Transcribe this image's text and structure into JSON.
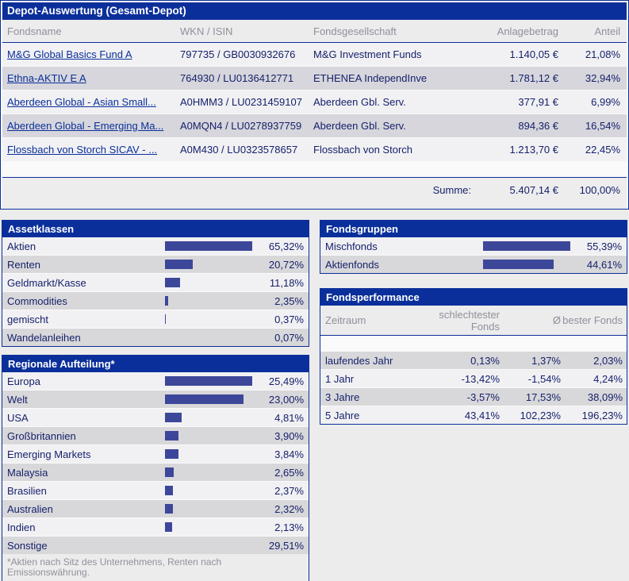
{
  "colors": {
    "navy": "#0b2f9a",
    "bar_fill": "#3d4799",
    "row_light": "#f1f1f3",
    "row_dark": "#d6d6dc",
    "muted_text": "#8f909c",
    "text_navy": "#17216b"
  },
  "title": "Depot-Auswertung (Gesamt-Depot)",
  "table": {
    "columns": [
      "Fondsname",
      "WKN / ISIN",
      "Fondsgesellschaft",
      "Anlagebetrag",
      "Anteil"
    ],
    "rows": [
      {
        "name": "M&G Global Basics Fund A",
        "wkn_isin": "797735 / GB0030932676",
        "company": "M&G Investment Funds",
        "amount": "1.140,05 €",
        "share": "21,08%"
      },
      {
        "name": "Ethna-AKTIV E A",
        "wkn_isin": "764930 / LU0136412771",
        "company": "ETHENEA IndependInve",
        "amount": "1.781,12 €",
        "share": "32,94%"
      },
      {
        "name": "Aberdeen Global - Asian Small...",
        "wkn_isin": "A0HMM3 / LU0231459107",
        "company": "Aberdeen Gbl. Serv.",
        "amount": "377,91 €",
        "share": "6,99%"
      },
      {
        "name": "Aberdeen Global - Emerging Ma...",
        "wkn_isin": "A0MQN4 / LU0278937759",
        "company": "Aberdeen Gbl. Serv.",
        "amount": "894,36 €",
        "share": "16,54%"
      },
      {
        "name": "Flossbach von Storch SICAV - ...",
        "wkn_isin": "A0M430 / LU0323578657",
        "company": "Flossbach von Storch",
        "amount": "1.213,70 €",
        "share": "22,45%"
      }
    ],
    "sum_label": "Summe:",
    "sum_amount": "5.407,14 €",
    "sum_share": "100,00%"
  },
  "panels": {
    "assetklassen": {
      "title": "Assetklassen",
      "rows": [
        {
          "label": "Aktien",
          "value": 65.32,
          "text": "65,32%"
        },
        {
          "label": "Renten",
          "value": 20.72,
          "text": "20,72%"
        },
        {
          "label": "Geldmarkt/Kasse",
          "value": 11.18,
          "text": "11,18%"
        },
        {
          "label": "Commodities",
          "value": 2.35,
          "text": "2,35%"
        },
        {
          "label": "gemischt",
          "value": 0.37,
          "text": "0,37%"
        },
        {
          "label": "Wandelanleihen",
          "value": 0.07,
          "text": "0,07%"
        }
      ]
    },
    "fondsgruppen": {
      "title": "Fondsgruppen",
      "rows": [
        {
          "label": "Mischfonds",
          "value": 55.39,
          "text": "55,39%"
        },
        {
          "label": "Aktienfonds",
          "value": 44.61,
          "text": "44,61%"
        }
      ]
    },
    "regionale": {
      "title": "Regionale Aufteilung*",
      "rows": [
        {
          "label": "Europa",
          "value": 25.49,
          "text": "25,49%"
        },
        {
          "label": "Welt",
          "value": 23.0,
          "text": "23,00%"
        },
        {
          "label": "USA",
          "value": 4.81,
          "text": "4,81%"
        },
        {
          "label": "Großbritannien",
          "value": 3.9,
          "text": "3,90%"
        },
        {
          "label": "Emerging Markets",
          "value": 3.84,
          "text": "3,84%"
        },
        {
          "label": "Malaysia",
          "value": 2.65,
          "text": "2,65%"
        },
        {
          "label": "Brasilien",
          "value": 2.37,
          "text": "2,37%"
        },
        {
          "label": "Australien",
          "value": 2.32,
          "text": "2,32%"
        },
        {
          "label": "Indien",
          "value": 2.13,
          "text": "2,13%"
        },
        {
          "label": "Sonstige",
          "value": 29.51,
          "text": "29,51%",
          "show_bar": false
        }
      ],
      "footnote": "*Aktien nach Sitz des Unternehmens, Renten nach Emissionswährung."
    },
    "performance": {
      "title": "Fondsperformance",
      "headers": {
        "zeitraum": "Zeitraum",
        "worst": "schlechtester Fonds",
        "avg": "Ø",
        "best": "bester Fonds"
      },
      "rows": [
        {
          "label": "laufendes Jahr",
          "worst": "0,13%",
          "avg": "1,37%",
          "best": "2,03%"
        },
        {
          "label": "1 Jahr",
          "worst": "-13,42%",
          "avg": "-1,54%",
          "best": "4,24%"
        },
        {
          "label": "3 Jahre",
          "worst": "-3,57%",
          "avg": "17,53%",
          "best": "38,09%"
        },
        {
          "label": "5 Jahre",
          "worst": "43,41%",
          "avg": "102,23%",
          "best": "196,23%"
        }
      ]
    }
  },
  "chart_data": [
    {
      "type": "bar",
      "title": "Assetklassen",
      "categories": [
        "Aktien",
        "Renten",
        "Geldmarkt/Kasse",
        "Commodities",
        "gemischt",
        "Wandelanleihen"
      ],
      "values": [
        65.32,
        20.72,
        11.18,
        2.35,
        0.37,
        0.07
      ],
      "unit": "%",
      "orientation": "horizontal"
    },
    {
      "type": "bar",
      "title": "Fondsgruppen",
      "categories": [
        "Mischfonds",
        "Aktienfonds"
      ],
      "values": [
        55.39,
        44.61
      ],
      "unit": "%",
      "orientation": "horizontal"
    },
    {
      "type": "bar",
      "title": "Regionale Aufteilung*",
      "categories": [
        "Europa",
        "Welt",
        "USA",
        "Großbritannien",
        "Emerging Markets",
        "Malaysia",
        "Brasilien",
        "Australien",
        "Indien",
        "Sonstige"
      ],
      "values": [
        25.49,
        23.0,
        4.81,
        3.9,
        3.84,
        2.65,
        2.37,
        2.32,
        2.13,
        29.51
      ],
      "unit": "%",
      "orientation": "horizontal"
    },
    {
      "type": "table",
      "title": "Fondsperformance",
      "columns": [
        "Zeitraum",
        "schlechtester Fonds",
        "Ø",
        "bester Fonds"
      ],
      "rows": [
        [
          "laufendes Jahr",
          "0,13%",
          "1,37%",
          "2,03%"
        ],
        [
          "1 Jahr",
          "-13,42%",
          "-1,54%",
          "4,24%"
        ],
        [
          "3 Jahre",
          "-3,57%",
          "17,53%",
          "38,09%"
        ],
        [
          "5 Jahre",
          "43,41%",
          "102,23%",
          "196,23%"
        ]
      ]
    }
  ]
}
